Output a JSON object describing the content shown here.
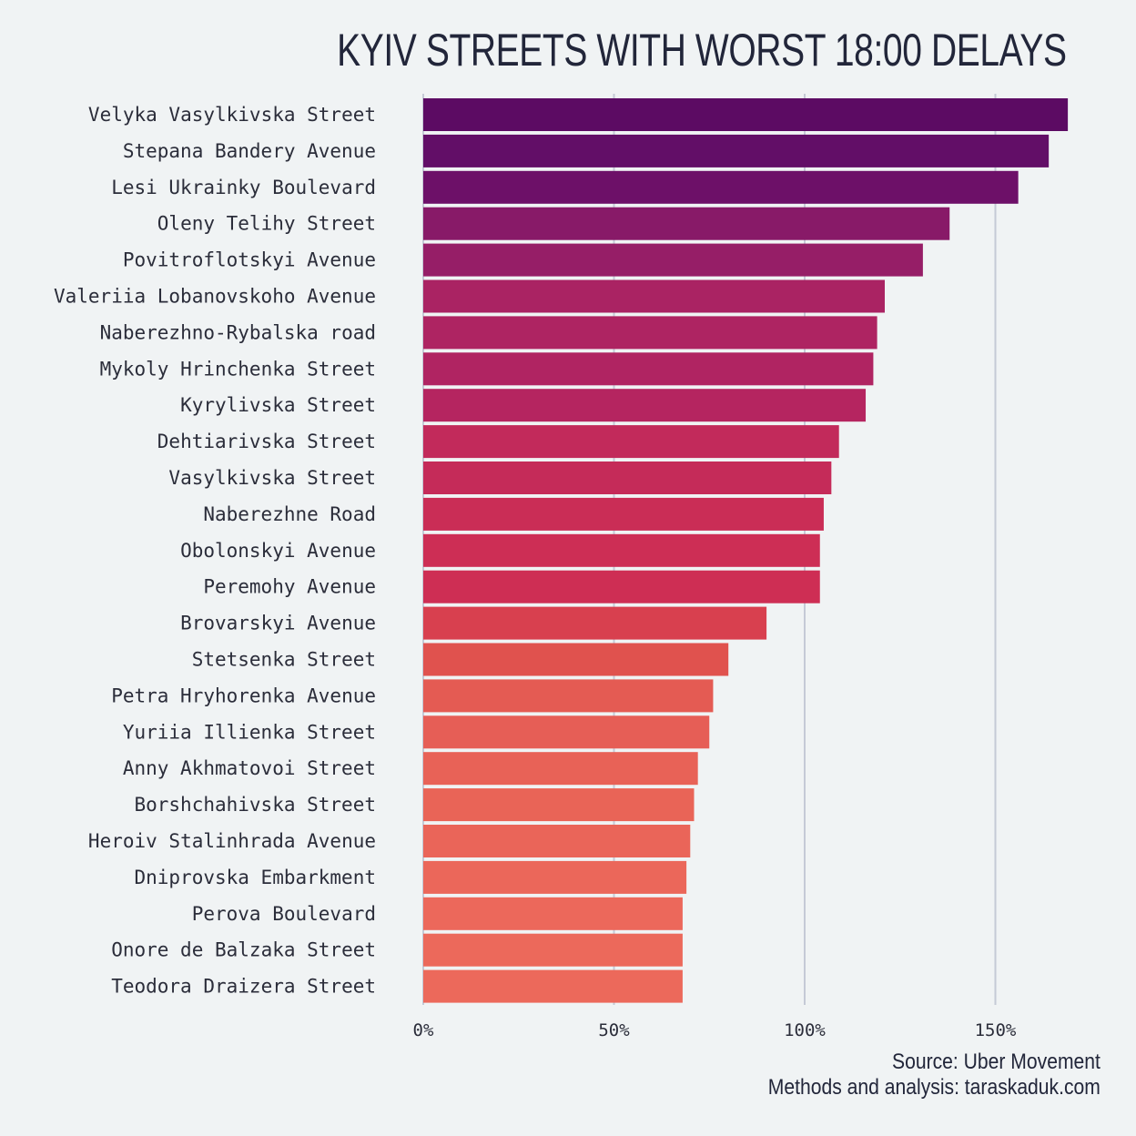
{
  "chart_data": {
    "type": "bar",
    "orientation": "horizontal",
    "title": "KYIV STREETS WITH WORST 18:00 DELAYS",
    "categories": [
      "Velyka Vasylkivska Street",
      "Stepana Bandery Avenue",
      "Lesi Ukrainky Boulevard",
      "Oleny Telihy Street",
      "Povitroflotskyi Avenue",
      "Valeriia Lobanovskoho Avenue",
      "Naberezhno-Rybalska road",
      "Mykoly Hrinchenka Street",
      "Kyrylivska Street",
      "Dehtiarivska Street",
      "Vasylkivska Street",
      "Naberezhne Road",
      "Obolonskyi Avenue",
      "Peremohy Avenue",
      "Brovarskyi Avenue",
      "Stetsenka Street",
      "Petra Hryhorenka Avenue",
      "Yuriia Illienka Street",
      "Anny Akhmatovoi Street",
      "Borshchahivska Street",
      "Heroiv Stalinhrada Avenue",
      "Dniprovska Embarkment",
      "Perova Boulevard",
      "Onore de Balzaka Street",
      "Teodora Draizera Street"
    ],
    "values": [
      169,
      164,
      156,
      138,
      131,
      121,
      119,
      118,
      116,
      109,
      107,
      105,
      104,
      104,
      90,
      80,
      76,
      75,
      72,
      71,
      70,
      69,
      68,
      68,
      68
    ],
    "colors": [
      "#5c0b63",
      "#620e67",
      "#6d1068",
      "#881a68",
      "#961e67",
      "#aa2363",
      "#ae2462",
      "#b02462",
      "#b52560",
      "#c22a5b",
      "#c52b59",
      "#ca2d56",
      "#cd2e55",
      "#ce2e54",
      "#d8404f",
      "#e0524e",
      "#e45b53",
      "#e65e56",
      "#e86257",
      "#e96457",
      "#ea6559",
      "#eb675a",
      "#ec685b",
      "#ec695b",
      "#ec695b"
    ],
    "x_ticks": [
      "0%",
      "50%",
      "100%",
      "150%"
    ],
    "x_tick_values": [
      0,
      50,
      100,
      150
    ],
    "xlim": [
      0,
      175
    ],
    "grid": true,
    "legend": "none"
  },
  "caption": {
    "source": "Source: Uber Movement",
    "methods": "Methods and analysis: taraskaduk.com"
  }
}
